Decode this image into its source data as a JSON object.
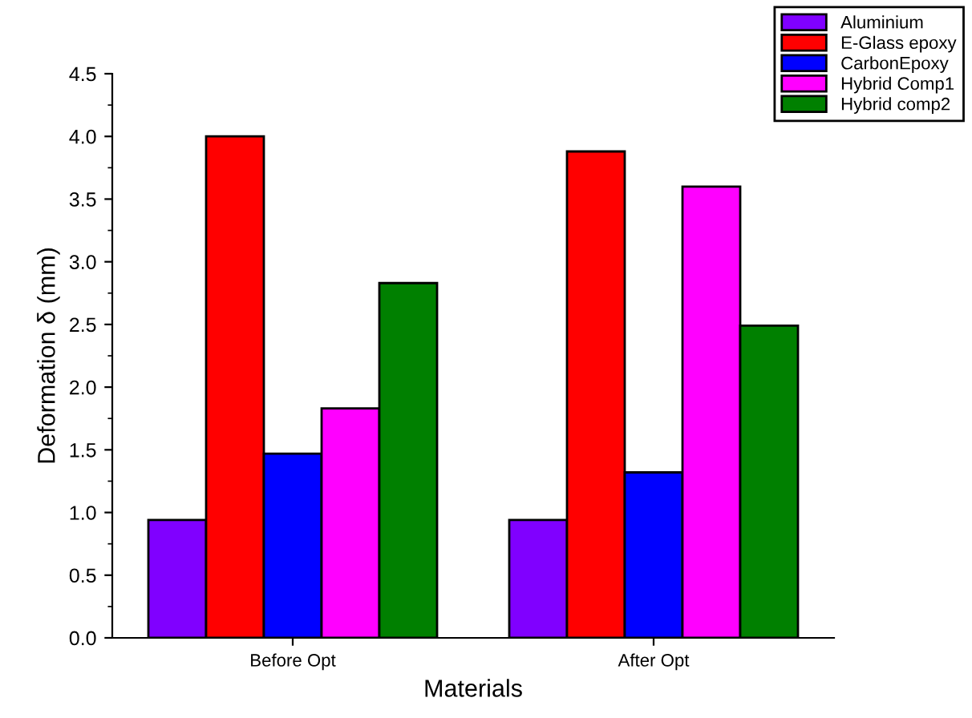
{
  "chart_data": {
    "type": "bar",
    "xlabel": "Materials",
    "ylabel": "Deformation δ (mm)",
    "categories": [
      "Before Opt",
      "After Opt"
    ],
    "series": [
      {
        "name": "Aluminium",
        "color": "#8000ff",
        "values": [
          0.94,
          0.94
        ]
      },
      {
        "name": "E-Glass epoxy",
        "color": "#ff0000",
        "values": [
          4.0,
          3.88
        ]
      },
      {
        "name": "CarbonEpoxy",
        "color": "#0000ff",
        "values": [
          1.47,
          1.32
        ]
      },
      {
        "name": "Hybrid Comp1",
        "color": "#ff00ff",
        "values": [
          1.83,
          3.6
        ]
      },
      {
        "name": "Hybrid comp2",
        "color": "#008000",
        "values": [
          2.83,
          2.49
        ]
      }
    ],
    "ylim": [
      0,
      4.5
    ],
    "yticks": [
      {
        "value": 0,
        "label": "0.0"
      },
      0.5,
      {
        "value": 1,
        "label": "1.0"
      },
      1.5,
      {
        "value": 2,
        "label": "2.0"
      },
      2.5,
      {
        "value": 3,
        "label": "3.0"
      },
      3.5,
      {
        "value": 4,
        "label": "4.0"
      },
      4.5
    ],
    "grid": false,
    "legend": "top right"
  }
}
